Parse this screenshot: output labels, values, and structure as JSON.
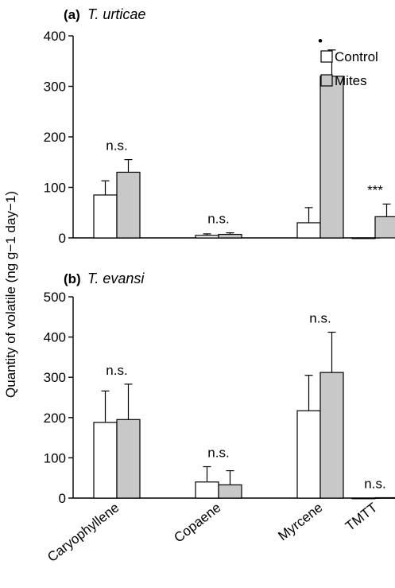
{
  "chart_data": {
    "type": "bar",
    "ylabel": "Quantity of volatile (ng g−1 day−1)",
    "categories": [
      "Caryophyllene",
      "Copaene",
      "Myrcene",
      "TMTT"
    ],
    "legend": {
      "placement": "top-right",
      "entries": [
        {
          "name": "Control",
          "color": "#ffffff"
        },
        {
          "name": "Mites",
          "color": "#c8c8c8"
        }
      ]
    },
    "panels": [
      {
        "label": "(a)",
        "species": "T. urticae",
        "ylim": [
          0,
          400
        ],
        "yticks": [
          0,
          100,
          200,
          300,
          400
        ],
        "series": [
          {
            "name": "Control",
            "values": [
              85,
              5,
              30,
              0
            ],
            "errors": [
              28,
              3,
              30,
              0
            ]
          },
          {
            "name": "Mites",
            "values": [
              130,
              7,
              320,
              42
            ],
            "errors": [
              25,
              3,
              52,
              25
            ]
          }
        ],
        "annotations": [
          "n.s.",
          "n.s.",
          "•",
          "***"
        ]
      },
      {
        "label": "(b)",
        "species": "T. evansi",
        "ylim": [
          0,
          500
        ],
        "yticks": [
          0,
          100,
          200,
          300,
          400,
          500
        ],
        "series": [
          {
            "name": "Control",
            "values": [
              188,
              40,
              217,
              0
            ],
            "errors": [
              78,
              38,
              88,
              0
            ]
          },
          {
            "name": "Mites",
            "values": [
              195,
              33,
              312,
              1
            ],
            "errors": [
              88,
              35,
              100,
              0
            ]
          }
        ],
        "annotations": [
          "n.s.",
          "n.s.",
          "n.s.",
          "n.s."
        ]
      }
    ],
    "colors": {
      "control": "#ffffff",
      "mites": "#c8c8c8",
      "stroke": "#000000"
    }
  }
}
